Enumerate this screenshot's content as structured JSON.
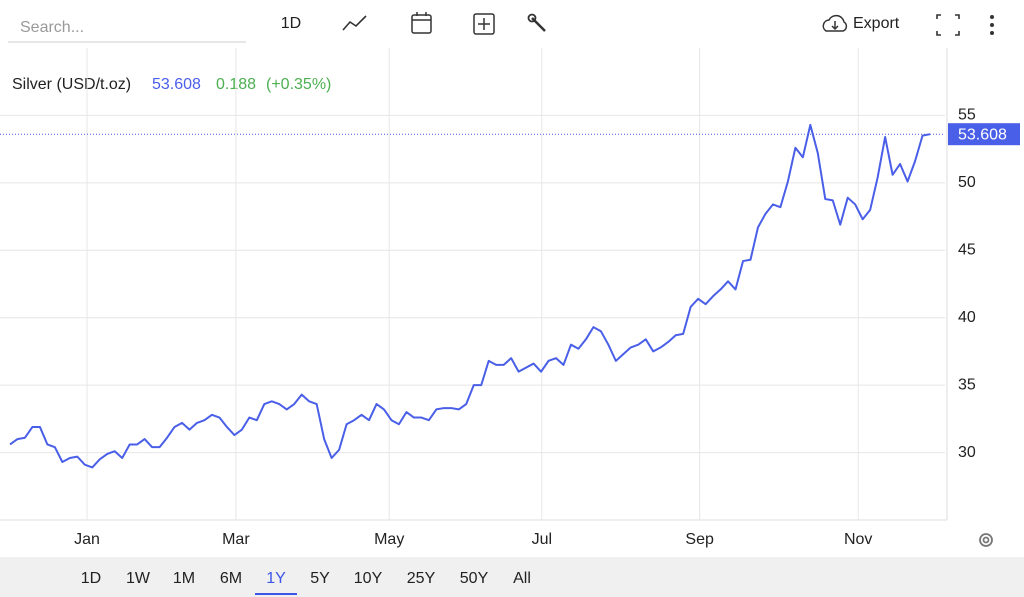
{
  "toolbar": {
    "search_placeholder": "Search...",
    "interval": "1D",
    "export": "Export"
  },
  "range_buttons": [
    "1D",
    "1W",
    "1M",
    "6M",
    "1Y",
    "5Y",
    "10Y",
    "25Y",
    "50Y",
    "All"
  ],
  "active_range": "1Y",
  "chart_data": {
    "type": "line",
    "series": [
      {
        "name": "Silver (USD/t.oz)",
        "color": "#4a5fe8",
        "values": [
          30.6,
          31.0,
          31.1,
          31.9,
          31.9,
          30.6,
          30.4,
          29.3,
          29.6,
          29.7,
          29.1,
          28.9,
          29.5,
          29.9,
          30.1,
          29.6,
          30.6,
          30.6,
          31.0,
          30.4,
          30.4,
          31.1,
          31.9,
          32.2,
          31.7,
          32.2,
          32.4,
          32.8,
          32.6,
          31.9,
          31.3,
          31.7,
          32.6,
          32.4,
          33.6,
          33.8,
          33.6,
          33.2,
          33.6,
          34.3,
          33.8,
          33.6,
          31.0,
          29.6,
          30.2,
          32.1,
          32.4,
          32.8,
          32.4,
          33.6,
          33.2,
          32.4,
          32.1,
          33.0,
          32.6,
          32.6,
          32.4,
          33.2,
          33.3,
          33.3,
          33.2,
          33.6,
          35.0,
          35.0,
          36.8,
          36.5,
          36.5,
          37.0,
          36.0,
          36.3,
          36.6,
          36.0,
          36.8,
          37.0,
          36.5,
          38.0,
          37.7,
          38.4,
          39.3,
          39.0,
          38.0,
          36.8,
          37.3,
          37.8,
          38.0,
          38.4,
          37.5,
          37.8,
          38.2,
          38.7,
          38.8,
          40.8,
          41.4,
          41.0,
          41.6,
          42.1,
          42.7,
          42.1,
          44.2,
          44.3,
          46.7,
          47.7,
          48.4,
          48.2,
          50.1,
          52.6,
          51.9,
          54.3,
          52.2,
          48.8,
          48.7,
          46.9,
          48.9,
          48.4,
          47.3,
          48.0,
          50.4,
          53.4,
          50.6,
          51.4,
          50.1,
          51.6,
          53.5,
          53.608
        ]
      }
    ],
    "change": 0.188,
    "change_percent": "(+0.35%)",
    "ylim": [
      25,
      60
    ],
    "yticks": [
      30,
      35,
      40,
      45,
      50,
      55
    ],
    "xlim": [
      0,
      123
    ],
    "xticks": [
      {
        "value": 10.3,
        "label": "Jan"
      },
      {
        "value": 30.2,
        "label": "Mar"
      },
      {
        "value": 50.7,
        "label": "May"
      },
      {
        "value": 71.1,
        "label": "Jul"
      },
      {
        "value": 92.2,
        "label": "Sep"
      },
      {
        "value": 113.4,
        "label": "Nov"
      }
    ],
    "grid": true,
    "last_value_line": true
  }
}
